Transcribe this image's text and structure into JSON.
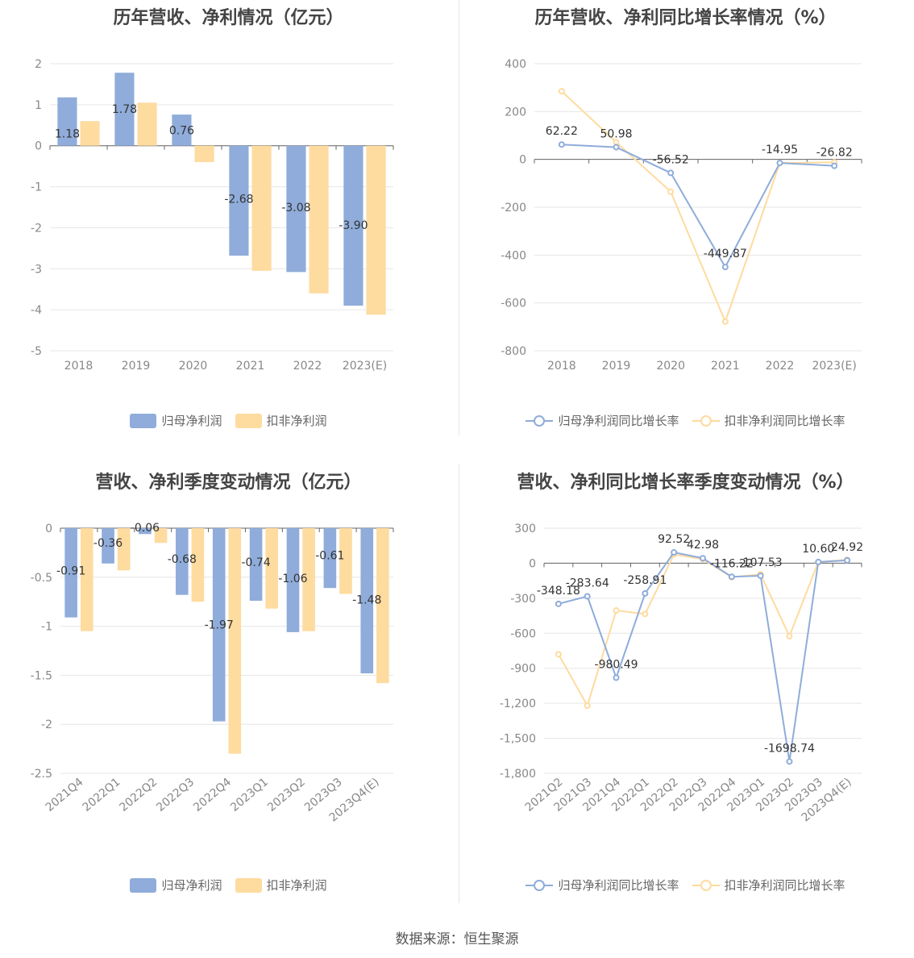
{
  "colors": {
    "series1": "#8facda",
    "series2": "#fedb9f",
    "grid": "#e6e6e6",
    "axis": "#666666"
  },
  "source": "数据来源：恒生聚源",
  "chart_data": [
    {
      "type": "bar",
      "title": "历年营收、净利情况（亿元）",
      "categories": [
        "2018",
        "2019",
        "2020",
        "2021",
        "2022",
        "2023(E)"
      ],
      "ylim": [
        -5,
        2
      ],
      "yticks": [
        2,
        1,
        0,
        -1,
        -2,
        -3,
        -4,
        -5
      ],
      "series": [
        {
          "name": "归母净利润",
          "values": [
            1.18,
            1.78,
            0.76,
            -2.68,
            -3.08,
            -3.9
          ],
          "labels": [
            "1.18",
            "1.78",
            "0.76",
            "-2.68",
            "-3.08",
            "-3.90"
          ]
        },
        {
          "name": "扣非净利润",
          "values": [
            0.6,
            1.05,
            -0.4,
            -3.05,
            -3.6,
            -4.12
          ]
        }
      ],
      "grid": true,
      "legend": "bottom"
    },
    {
      "type": "line",
      "title": "历年营收、净利同比增长率情况（%）",
      "categories": [
        "2018",
        "2019",
        "2020",
        "2021",
        "2022",
        "2023(E)"
      ],
      "ylim": [
        -800,
        400
      ],
      "yticks": [
        400,
        200,
        0,
        -200,
        -400,
        -600,
        -800
      ],
      "series": [
        {
          "name": "归母净利润同比增长率",
          "values": [
            62.22,
            50.98,
            -56.52,
            -449.87,
            -14.95,
            -26.82
          ],
          "labels": [
            "62.22",
            "50.98",
            "-56.52",
            "-449.87",
            "-14.95",
            "-26.82"
          ]
        },
        {
          "name": "扣非净利润同比增长率",
          "values": [
            285,
            72,
            -135,
            -678,
            -15,
            -12
          ]
        }
      ],
      "grid": true,
      "legend": "bottom"
    },
    {
      "type": "bar",
      "title": "营收、净利季度变动情况（亿元）",
      "categories": [
        "2021Q4",
        "2022Q1",
        "2022Q2",
        "2022Q3",
        "2022Q4",
        "2023Q1",
        "2023Q2",
        "2023Q3",
        "2023Q4(E)"
      ],
      "ylim": [
        -2.5,
        0
      ],
      "yticks": [
        0,
        -0.5,
        -1,
        -1.5,
        -2,
        -2.5
      ],
      "series": [
        {
          "name": "归母净利润",
          "values": [
            -0.91,
            -0.36,
            -0.06,
            -0.68,
            -1.97,
            -0.74,
            -1.06,
            -0.61,
            -1.48
          ],
          "labels": [
            "-0.91",
            "-0.36",
            "-0.06",
            "-0.68",
            "-1.97",
            "-0.74",
            "-1.06",
            "-0.61",
            "-1.48"
          ]
        },
        {
          "name": "扣非净利润",
          "values": [
            -1.05,
            -0.43,
            -0.15,
            -0.75,
            -2.3,
            -0.82,
            -1.05,
            -0.67,
            -1.58
          ]
        }
      ],
      "grid": true,
      "legend": "bottom"
    },
    {
      "type": "line",
      "title": "营收、净利同比增长率季度变动情况（%）",
      "categories": [
        "2021Q2",
        "2021Q3",
        "2021Q4",
        "2022Q1",
        "2022Q2",
        "2022Q3",
        "2022Q4",
        "2023Q1",
        "2023Q2",
        "2023Q3",
        "2023Q4(E)"
      ],
      "ylim": [
        -1800,
        300
      ],
      "yticks": [
        300,
        0,
        -300,
        -600,
        -900,
        -1200,
        -1500,
        -1800
      ],
      "ytick_labels": [
        "300",
        "0",
        "-300",
        "-600",
        "-900",
        "-1,200",
        "-1,500",
        "-1,800"
      ],
      "series": [
        {
          "name": "归母净利润同比增长率",
          "values": [
            -348.18,
            -283.64,
            -980.49,
            -258.91,
            92.52,
            42.98,
            -116.22,
            -107.53,
            -1698.74,
            10.6,
            24.92
          ],
          "labels": [
            "-348.18",
            "-283.64",
            "-980.49",
            "-258.91",
            "92.52",
            "42.98",
            "-116.22",
            "-107.53",
            "-1698.74",
            "10.60",
            "24.92"
          ]
        },
        {
          "name": "扣非净利润同比增长率",
          "values": [
            -780,
            -1220,
            -405,
            -435,
            75,
            35,
            -120,
            -95,
            -625,
            10,
            30
          ]
        }
      ],
      "grid": true,
      "legend": "bottom"
    }
  ]
}
